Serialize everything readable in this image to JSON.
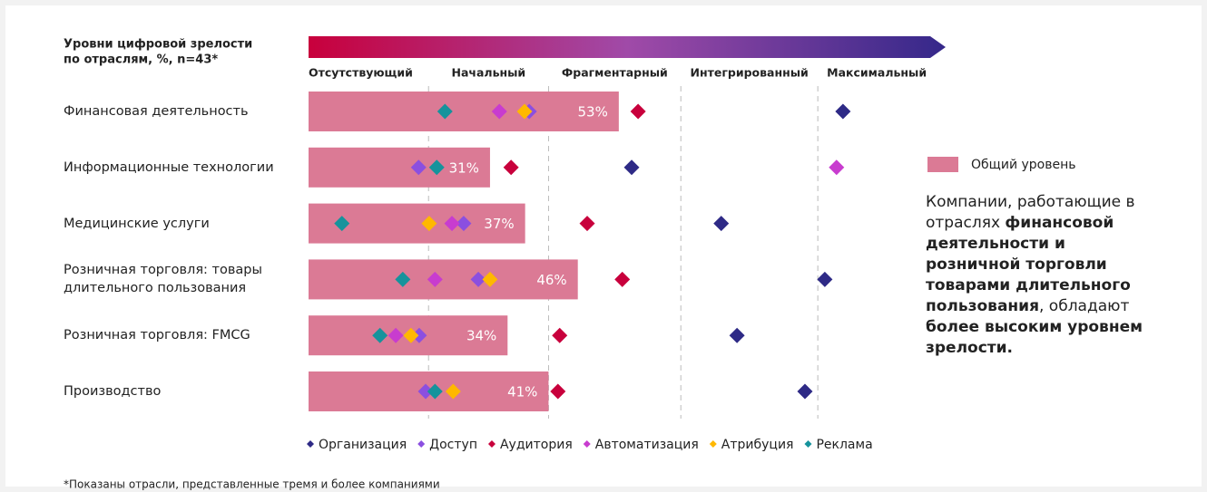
{
  "chart_data": {
    "type": "bar",
    "title": [
      "Уровни цифровой зрелости",
      "по отраслям, %, n=43*"
    ],
    "levels": [
      {
        "label": "Отсутствующий",
        "color": "#c8003c"
      },
      {
        "label": "Начальный",
        "color": "#8a2a9a"
      },
      {
        "label": "Фрагментарный",
        "color": "#a65ac2"
      },
      {
        "label": "Интегрированный",
        "color": "#4b2c8f"
      },
      {
        "label": "Максимальный",
        "color": "#2e2a86"
      }
    ],
    "xlim": [
      0,
      100
    ],
    "xticks": [
      20.5,
      41,
      63.6,
      87
    ],
    "categories": [
      "Финансовая деятельность",
      "Информационные технологии",
      "Медицинские услуги",
      "Розничная торговля: товары длительного пользования",
      "Розничная торговля: FMCG",
      "Производство"
    ],
    "bar": {
      "name": "Общий уровень",
      "color": "#db7a95",
      "values": [
        53,
        31,
        37,
        46,
        34,
        41
      ],
      "value_labels": [
        "53%",
        "31%",
        "37%",
        "46%",
        "34%",
        "41%"
      ]
    },
    "series": [
      {
        "name": "Организация",
        "color": "#2e2a86",
        "values": [
          91.3,
          55.2,
          70.5,
          88.2,
          73.2,
          84.8
        ]
      },
      {
        "name": "Доступ",
        "color": "#8b4fe0",
        "values": [
          37.7,
          18.8,
          26.5,
          29.0,
          18.9,
          20.0
        ]
      },
      {
        "name": "Аудитория",
        "color": "#c8003c",
        "values": [
          56.3,
          34.6,
          47.6,
          53.6,
          42.9,
          42.6
        ]
      },
      {
        "name": "Автоматизация",
        "color": "#c83ccf",
        "values": [
          32.6,
          90.2,
          24.5,
          21.6,
          14.9,
          null
        ]
      },
      {
        "name": "Атрибуция",
        "color": "#ffb800",
        "values": [
          36.9,
          null,
          20.6,
          31.0,
          17.5,
          24.7
        ]
      },
      {
        "name": "Реклама",
        "color": "#16939c",
        "values": [
          23.3,
          21.9,
          5.7,
          16.1,
          12.2,
          21.6
        ]
      }
    ],
    "annotation": [
      {
        "text": "Компании, работающие в отраслях ",
        "bold": false
      },
      {
        "text": "финансовой деятельности и розничной торговли товарами длительного пользования",
        "bold": true
      },
      {
        "text": ", обладают ",
        "bold": false
      },
      {
        "text": "более высоким уровнем зрелости.",
        "bold": true
      }
    ],
    "footnote": "*Показаны отрасли, представленные тремя и более компаниями"
  }
}
